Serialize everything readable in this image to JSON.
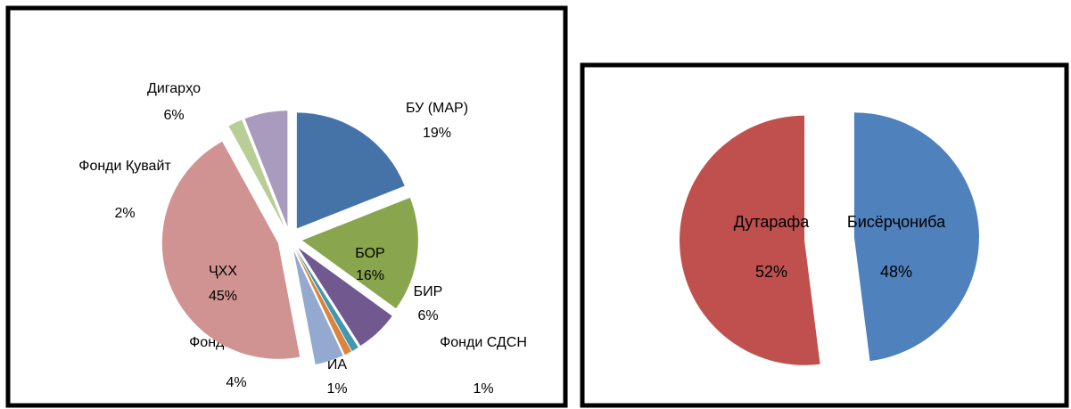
{
  "chart_data": [
    {
      "type": "pie",
      "categories": [
        "БУ (МАР)",
        "БОР",
        "БИР",
        "Фонди СДСН",
        "ИА",
        "Фонди зИИАО",
        "ҶХХ",
        "Фонди Қувайт",
        "Дигарҳо"
      ],
      "values": [
        19,
        16,
        6,
        1,
        1,
        4,
        45,
        2,
        6
      ],
      "value_labels": [
        "19%",
        "16%",
        "6%",
        "1%",
        "1%",
        "4%",
        "45%",
        "2%",
        "6%"
      ],
      "colors": [
        "#4573a7",
        "#89a54e",
        "#71588f",
        "#4298af",
        "#db843d",
        "#93a9cf",
        "#d19392",
        "#b9cd96",
        "#a99bbd"
      ]
    },
    {
      "type": "pie",
      "categories": [
        "Бисёрҷониба",
        "Дутарафа"
      ],
      "values": [
        48,
        52
      ],
      "value_labels": [
        "48%",
        "52%"
      ],
      "colors": [
        "#4f81bd",
        "#c0504d"
      ]
    }
  ]
}
